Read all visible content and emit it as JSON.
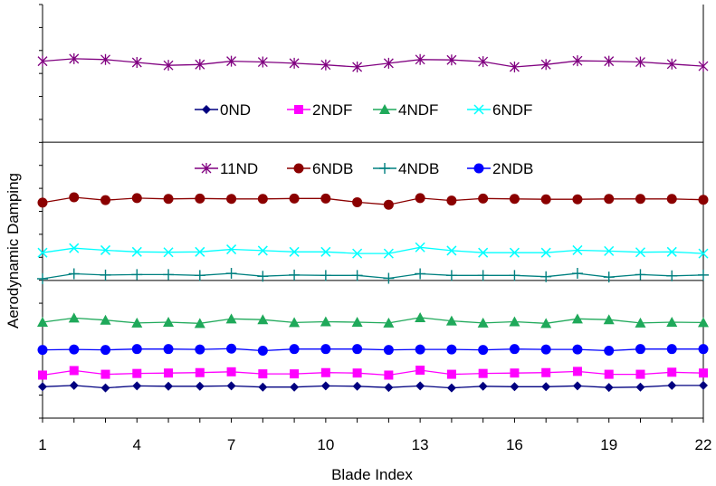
{
  "chart_data": {
    "type": "line",
    "xlabel": "Blade Index",
    "ylabel": "Aerodynamic Damping",
    "x": [
      1,
      2,
      3,
      4,
      5,
      6,
      7,
      8,
      9,
      10,
      11,
      12,
      13,
      14,
      15,
      16,
      17,
      18,
      19,
      20,
      21,
      22
    ],
    "xticks": [
      "1",
      "4",
      "7",
      "10",
      "13",
      "16",
      "19",
      "22"
    ],
    "xlim": [
      1,
      22
    ],
    "ylim": [
      0,
      1
    ],
    "y_tick_labels_shown": false,
    "grid": {
      "horizontal_lines_at": [
        0.333,
        0.667
      ]
    },
    "legend": {
      "placement": "inside",
      "rows": [
        [
          "0ND",
          "2NDF",
          "4NDF",
          "6NDF"
        ],
        [
          "11ND",
          "6NDB",
          "4NDB",
          "2NDB"
        ]
      ]
    },
    "series": [
      {
        "name": "0ND",
        "color": "#000080",
        "marker": "diamond",
        "values": [
          0.076,
          0.079,
          0.073,
          0.078,
          0.077,
          0.077,
          0.078,
          0.075,
          0.075,
          0.078,
          0.077,
          0.074,
          0.078,
          0.073,
          0.077,
          0.076,
          0.076,
          0.078,
          0.074,
          0.075,
          0.079,
          0.079
        ]
      },
      {
        "name": "2NDF",
        "color": "#FF00FF",
        "marker": "square",
        "values": [
          0.104,
          0.115,
          0.106,
          0.108,
          0.109,
          0.11,
          0.112,
          0.107,
          0.107,
          0.11,
          0.109,
          0.104,
          0.116,
          0.106,
          0.108,
          0.109,
          0.11,
          0.113,
          0.106,
          0.106,
          0.111,
          0.109
        ]
      },
      {
        "name": "2NDB",
        "color": "#0000FF",
        "marker": "circle",
        "values": [
          0.165,
          0.166,
          0.165,
          0.167,
          0.167,
          0.166,
          0.168,
          0.163,
          0.167,
          0.167,
          0.167,
          0.165,
          0.166,
          0.166,
          0.165,
          0.167,
          0.166,
          0.166,
          0.163,
          0.167,
          0.167,
          0.167
        ]
      },
      {
        "name": "4NDF",
        "color": "#1FA95A",
        "marker": "triangle",
        "values": [
          0.232,
          0.242,
          0.237,
          0.23,
          0.232,
          0.229,
          0.24,
          0.238,
          0.231,
          0.233,
          0.232,
          0.23,
          0.243,
          0.235,
          0.23,
          0.233,
          0.229,
          0.24,
          0.238,
          0.23,
          0.232,
          0.231
        ]
      },
      {
        "name": "4NDB",
        "color": "#008080",
        "marker": "plus",
        "values": [
          0.337,
          0.349,
          0.346,
          0.347,
          0.347,
          0.345,
          0.35,
          0.343,
          0.346,
          0.345,
          0.345,
          0.338,
          0.349,
          0.345,
          0.345,
          0.345,
          0.342,
          0.35,
          0.341,
          0.347,
          0.344,
          0.346
        ]
      },
      {
        "name": "6NDF",
        "color": "#00FFFF",
        "marker": "x",
        "values": [
          0.4,
          0.411,
          0.406,
          0.402,
          0.401,
          0.402,
          0.408,
          0.405,
          0.402,
          0.402,
          0.398,
          0.398,
          0.413,
          0.405,
          0.4,
          0.4,
          0.4,
          0.406,
          0.404,
          0.401,
          0.402,
          0.398
        ]
      },
      {
        "name": "6NDB",
        "color": "#8B0000",
        "marker": "circle",
        "values": [
          0.521,
          0.534,
          0.527,
          0.532,
          0.53,
          0.531,
          0.53,
          0.53,
          0.531,
          0.531,
          0.522,
          0.516,
          0.532,
          0.526,
          0.531,
          0.53,
          0.529,
          0.529,
          0.53,
          0.53,
          0.53,
          0.528
        ]
      },
      {
        "name": "11ND",
        "color": "#800080",
        "marker": "asterisk",
        "values": [
          0.863,
          0.869,
          0.867,
          0.86,
          0.853,
          0.855,
          0.863,
          0.861,
          0.858,
          0.854,
          0.849,
          0.858,
          0.867,
          0.866,
          0.862,
          0.849,
          0.855,
          0.864,
          0.863,
          0.861,
          0.856,
          0.851
        ]
      }
    ]
  }
}
